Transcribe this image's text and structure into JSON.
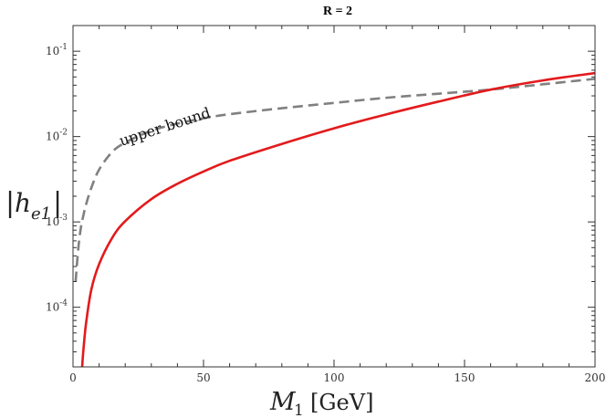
{
  "chart_data": {
    "type": "line",
    "title": "R = 2",
    "xlabel": {
      "var": "M",
      "sub": "1",
      "unit": "[GeV]"
    },
    "ylabel": {
      "var": "h",
      "sub": "e1"
    },
    "xlim": [
      0,
      200
    ],
    "ylim": [
      2e-05,
      0.2
    ],
    "yscale": "log",
    "grid": false,
    "x_ticks": [
      0,
      50,
      100,
      150,
      200
    ],
    "x_tick_labels": [
      "0",
      "50",
      "100",
      "150",
      "200"
    ],
    "y_ticks": [
      0.1,
      0.01,
      0.001,
      0.0001
    ],
    "y_tick_labels": [
      {
        "base": "10",
        "exp": "-1"
      },
      {
        "base": "10",
        "exp": "-2"
      },
      {
        "base": "10",
        "exp": "-3"
      },
      {
        "base": "10",
        "exp": "-4"
      }
    ],
    "series": [
      {
        "id": "upper-bound",
        "color": "#808080",
        "dash": "dashed",
        "x": [
          1,
          2,
          3,
          4,
          5,
          7,
          10,
          15,
          20,
          30,
          40,
          50,
          60,
          80,
          100,
          120,
          140,
          160,
          180,
          200
        ],
        "y": [
          0.0002,
          0.00048,
          0.00085,
          0.0012,
          0.0016,
          0.0025,
          0.0041,
          0.0066,
          0.0085,
          0.0117,
          0.0142,
          0.0164,
          0.0183,
          0.0215,
          0.0248,
          0.0285,
          0.0318,
          0.0355,
          0.041,
          0.0475
        ]
      },
      {
        "id": "h-e1",
        "color": "#e31a1c",
        "dash": "solid",
        "x": [
          3.5,
          4,
          5,
          7,
          10,
          15,
          20,
          30,
          40,
          50,
          60,
          80,
          100,
          120,
          140,
          160,
          180,
          200
        ],
        "y": [
          2e-05,
          3.2e-05,
          6.5e-05,
          0.00016,
          0.00032,
          0.00065,
          0.00102,
          0.00185,
          0.0028,
          0.0039,
          0.0052,
          0.0082,
          0.0125,
          0.0182,
          0.0257,
          0.0355,
          0.0455,
          0.0555
        ]
      }
    ],
    "annotations": [
      {
        "text": "upper bound",
        "color": "#111111"
      }
    ]
  }
}
